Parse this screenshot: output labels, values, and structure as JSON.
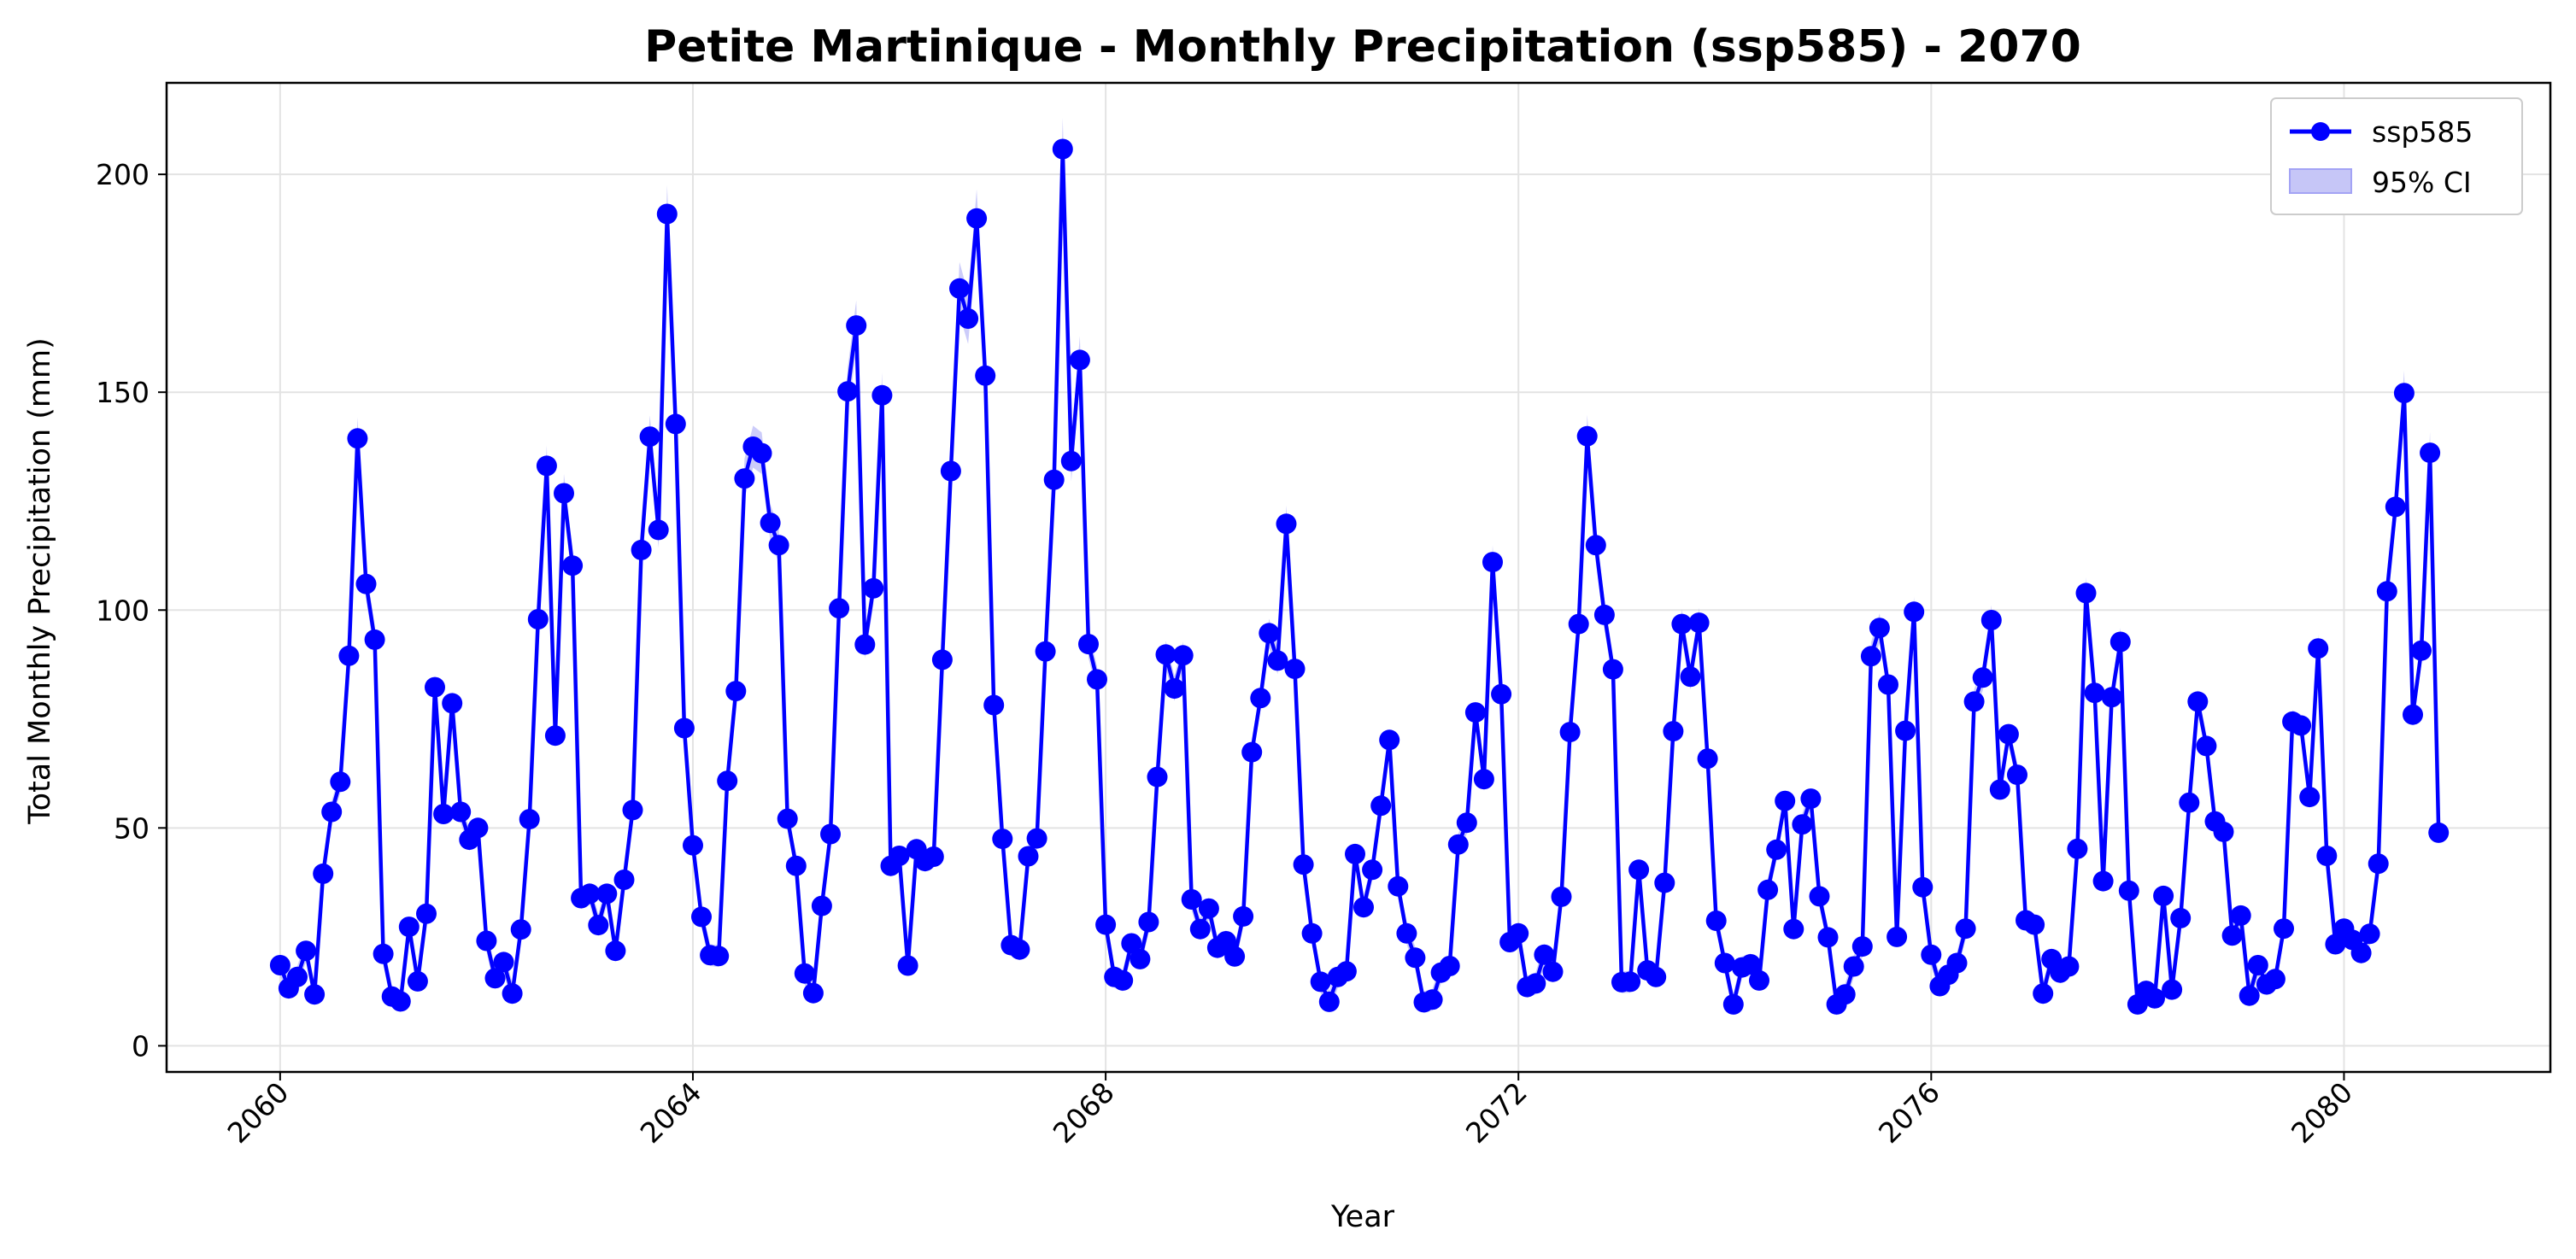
{
  "chart_data": {
    "type": "line",
    "title": "Petite Martinique - Monthly Precipitation (ssp585) - 2070",
    "xlabel": "Year",
    "ylabel": "Total Monthly Precipitation (mm)",
    "x_ticks": [
      "2060",
      "2064",
      "2068",
      "2072",
      "2076",
      "2080"
    ],
    "y_ticks": [
      "0",
      "50",
      "100",
      "150",
      "200"
    ],
    "xlim": [
      2058.9,
      2082.0
    ],
    "ylim": [
      -6,
      221
    ],
    "grid": true,
    "legend_position": "top-right",
    "legend": [
      "ssp585",
      "95% CI"
    ],
    "start_year": 2060,
    "months_per_year": 12,
    "line_color": "#0000ff",
    "ci_color": "#a3a3f5",
    "series": [
      {
        "name": "ssp585",
        "values": [
          18.5,
          13.2,
          15.8,
          21.8,
          11.8,
          39.5,
          53.7,
          60.6,
          89.5,
          139.4,
          106.0,
          93.2,
          21.1,
          11.3,
          10.2,
          27.3,
          14.8,
          30.3,
          82.3,
          53.2,
          78.6,
          53.7,
          47.3,
          50.0,
          24.1,
          15.5,
          19.2,
          12.0,
          26.7,
          52.0,
          97.9,
          133.1,
          71.2,
          126.8,
          110.2,
          33.9,
          34.9,
          27.7,
          34.9,
          21.8,
          38.1,
          54.1,
          113.8,
          139.8,
          118.4,
          190.9,
          142.7,
          72.9,
          46.0,
          29.6,
          20.8,
          20.6,
          60.8,
          81.4,
          130.2,
          137.5,
          136.0,
          120.0,
          114.9,
          52.1,
          41.3,
          16.6,
          12.1,
          32.1,
          48.6,
          100.4,
          150.2,
          165.3,
          92.1,
          105.0,
          149.3,
          41.3,
          43.6,
          18.4,
          45.1,
          42.4,
          43.4,
          88.6,
          131.9,
          173.8,
          166.9,
          189.9,
          153.8,
          78.2,
          47.5,
          23.1,
          22.1,
          43.5,
          47.6,
          90.5,
          129.9,
          205.8,
          134.2,
          157.4,
          92.2,
          84.1,
          27.8,
          15.8,
          15.0,
          23.5,
          19.9,
          28.4,
          61.7,
          89.8,
          82.0,
          89.6,
          33.6,
          26.8,
          31.5,
          22.5,
          24.0,
          20.5,
          29.7,
          67.4,
          79.8,
          94.7,
          88.4,
          119.8,
          86.5,
          41.6,
          25.8,
          14.7,
          10.1,
          15.8,
          17.1,
          44.0,
          31.8,
          40.4,
          55.1,
          70.2,
          36.6,
          25.8,
          20.2,
          10.0,
          10.6,
          16.8,
          18.3,
          46.2,
          51.2,
          76.5,
          61.2,
          111.0,
          80.7,
          23.8,
          25.8,
          13.5,
          14.3,
          20.9,
          17.0,
          34.2,
          72.0,
          96.8,
          139.9,
          114.9,
          98.9,
          86.4,
          14.6,
          14.7,
          40.4,
          17.3,
          15.8,
          37.4,
          72.2,
          96.8,
          84.7,
          97.1,
          65.9,
          28.7,
          19.0,
          9.5,
          18.0,
          18.7,
          15.0,
          35.8,
          45.0,
          56.2,
          26.8,
          50.8,
          56.7,
          34.3,
          24.9,
          9.5,
          11.8,
          18.2,
          22.8,
          89.4,
          95.9,
          82.9,
          25.0,
          72.3,
          99.6,
          36.4,
          20.9,
          13.7,
          16.3,
          19.0,
          26.9,
          79.0,
          84.5,
          97.7,
          58.8,
          71.5,
          62.2,
          28.8,
          27.8,
          12.0,
          19.9,
          16.8,
          18.2,
          45.2,
          103.9,
          81.0,
          37.8,
          80.0,
          92.7,
          35.6,
          9.5,
          12.6,
          10.9,
          34.4,
          12.9,
          29.3,
          55.8,
          79.0,
          68.8,
          51.5,
          49.1,
          25.3,
          29.9,
          11.5,
          18.5,
          14.1,
          15.3,
          26.9,
          74.4,
          73.5,
          57.1,
          91.2,
          43.6,
          23.3,
          26.9,
          24.3,
          21.3,
          25.7,
          41.8,
          104.3,
          123.7,
          149.8,
          76.0,
          90.7,
          136.1,
          48.9
        ]
      }
    ]
  }
}
